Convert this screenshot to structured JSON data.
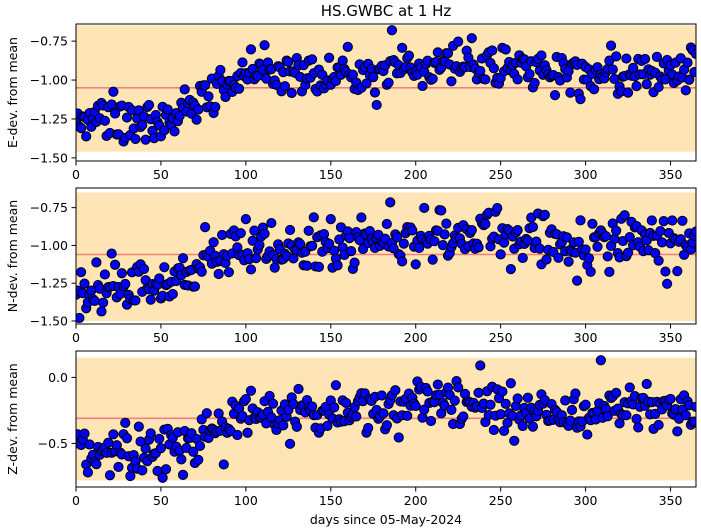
{
  "figure_title": "HS.GWBC at 1 Hz",
  "x_axis_label": "days since 05-May-2024",
  "colors": {
    "band": "#ffe4b5",
    "mean_line": "#f08080",
    "point_fill": "#0000ff",
    "point_edge": "#000000"
  },
  "chart_data": [
    {
      "type": "scatter",
      "ylabel": "E-dev. from mean",
      "xlim": [
        0,
        365
      ],
      "ylim": [
        -1.52,
        -0.64
      ],
      "xticks": [
        0,
        50,
        100,
        150,
        200,
        250,
        300,
        350
      ],
      "yticks": [
        -1.5,
        -1.25,
        -1.0,
        -0.75
      ],
      "ytick_labels": [
        "−1.50",
        "−1.25",
        "−1.00",
        "−0.75"
      ],
      "band": [
        -1.46,
        -0.65
      ],
      "mean": -1.05,
      "grid": false,
      "points_x": [],
      "points_y": []
    },
    {
      "type": "scatter",
      "ylabel": "N-dev. from mean",
      "xlim": [
        0,
        365
      ],
      "ylim": [
        -1.52,
        -0.62
      ],
      "xticks": [
        0,
        50,
        100,
        150,
        200,
        250,
        300,
        350
      ],
      "yticks": [
        -1.5,
        -1.25,
        -1.0,
        -0.75
      ],
      "ytick_labels": [
        "−1.50",
        "−1.25",
        "−1.00",
        "−0.75"
      ],
      "band": [
        -1.5,
        -0.65
      ],
      "mean": -1.06,
      "grid": false,
      "points_x": [],
      "points_y": []
    },
    {
      "type": "scatter",
      "ylabel": "Z-dev. from mean",
      "xlim": [
        0,
        365
      ],
      "ylim": [
        -0.83,
        0.2
      ],
      "xticks": [
        0,
        50,
        100,
        150,
        200,
        250,
        300,
        350
      ],
      "yticks": [
        -0.5,
        0.0
      ],
      "ytick_labels": [
        "−0.5",
        "0.0"
      ],
      "band": [
        -0.78,
        0.15
      ],
      "mean": -0.31,
      "grid": false,
      "points_x": [],
      "points_y": []
    }
  ]
}
